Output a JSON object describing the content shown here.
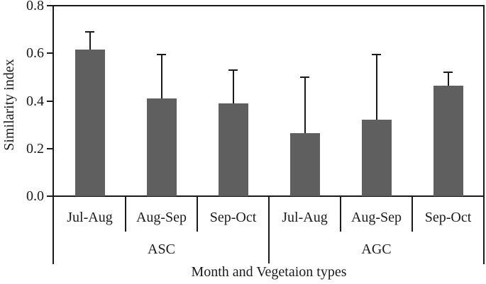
{
  "chart_data": {
    "type": "bar",
    "title": "",
    "ylabel": "Similarity index",
    "xlabel": "Month and Vegetaion types",
    "ylim": [
      0,
      0.8
    ],
    "ytick_labels": [
      "0.0",
      "0.2",
      "0.4",
      "0.6",
      "0.8"
    ],
    "ytick_values": [
      0.0,
      0.2,
      0.4,
      0.6,
      0.8
    ],
    "grid": false,
    "legend": null,
    "bar_color": "#5f5f5f",
    "axis_color": "#1a1a1a",
    "error_bars": "upper-only",
    "groups": [
      {
        "label": "ASC",
        "categories": [
          "Jul-Aug",
          "Aug-Sep",
          "Sep-Oct"
        ],
        "values": [
          0.615,
          0.41,
          0.39
        ],
        "error_upper": [
          0.075,
          0.185,
          0.14
        ]
      },
      {
        "label": "AGC",
        "categories": [
          "Jul-Aug",
          "Aug-Sep",
          "Sep-Oct"
        ],
        "values": [
          0.265,
          0.32,
          0.465
        ],
        "error_upper": [
          0.235,
          0.275,
          0.055
        ]
      }
    ]
  }
}
